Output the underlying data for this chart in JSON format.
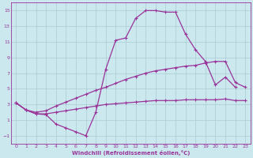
{
  "xlabel": "Windchill (Refroidissement éolien,°C)",
  "background_color": "#cce8ef",
  "grid_color": "#aaccd4",
  "line_color": "#993399",
  "xlim": [
    -0.5,
    23.5
  ],
  "ylim": [
    -2,
    16
  ],
  "xticks": [
    0,
    1,
    2,
    3,
    4,
    5,
    6,
    7,
    8,
    9,
    10,
    11,
    12,
    13,
    14,
    15,
    16,
    17,
    18,
    19,
    20,
    21,
    22,
    23
  ],
  "yticks": [
    -1,
    1,
    3,
    5,
    7,
    9,
    11,
    13,
    15
  ],
  "line1_x": [
    0,
    1,
    2,
    3,
    4,
    5,
    6,
    7,
    8,
    9,
    10,
    11,
    12,
    13,
    14,
    15,
    16,
    17,
    18,
    19,
    20,
    21,
    22
  ],
  "line1_y": [
    3.2,
    2.3,
    1.8,
    1.7,
    0.5,
    0.0,
    -0.5,
    -1.0,
    2.0,
    7.5,
    11.2,
    11.5,
    14.0,
    15.0,
    15.0,
    14.8,
    14.8,
    12.0,
    10.0,
    8.5,
    5.5,
    6.5,
    5.2
  ],
  "line2_x": [
    0,
    1,
    2,
    3,
    4,
    5,
    6,
    7,
    8,
    9,
    10,
    11,
    12,
    13,
    14,
    15,
    16,
    17,
    18,
    19,
    20,
    21,
    22,
    23
  ],
  "line2_y": [
    3.2,
    2.3,
    2.0,
    2.2,
    2.8,
    3.3,
    3.8,
    4.3,
    4.8,
    5.2,
    5.7,
    6.2,
    6.6,
    7.0,
    7.3,
    7.5,
    7.7,
    7.9,
    8.0,
    8.3,
    8.5,
    8.5,
    5.8,
    5.2
  ],
  "line3_x": [
    0,
    1,
    2,
    3,
    4,
    5,
    6,
    7,
    8,
    9,
    10,
    11,
    12,
    13,
    14,
    15,
    16,
    17,
    18,
    19,
    20,
    21,
    22,
    23
  ],
  "line3_y": [
    3.2,
    2.3,
    1.8,
    1.8,
    2.0,
    2.2,
    2.4,
    2.6,
    2.8,
    3.0,
    3.1,
    3.2,
    3.3,
    3.4,
    3.5,
    3.5,
    3.5,
    3.6,
    3.6,
    3.6,
    3.6,
    3.7,
    3.5,
    3.5
  ]
}
